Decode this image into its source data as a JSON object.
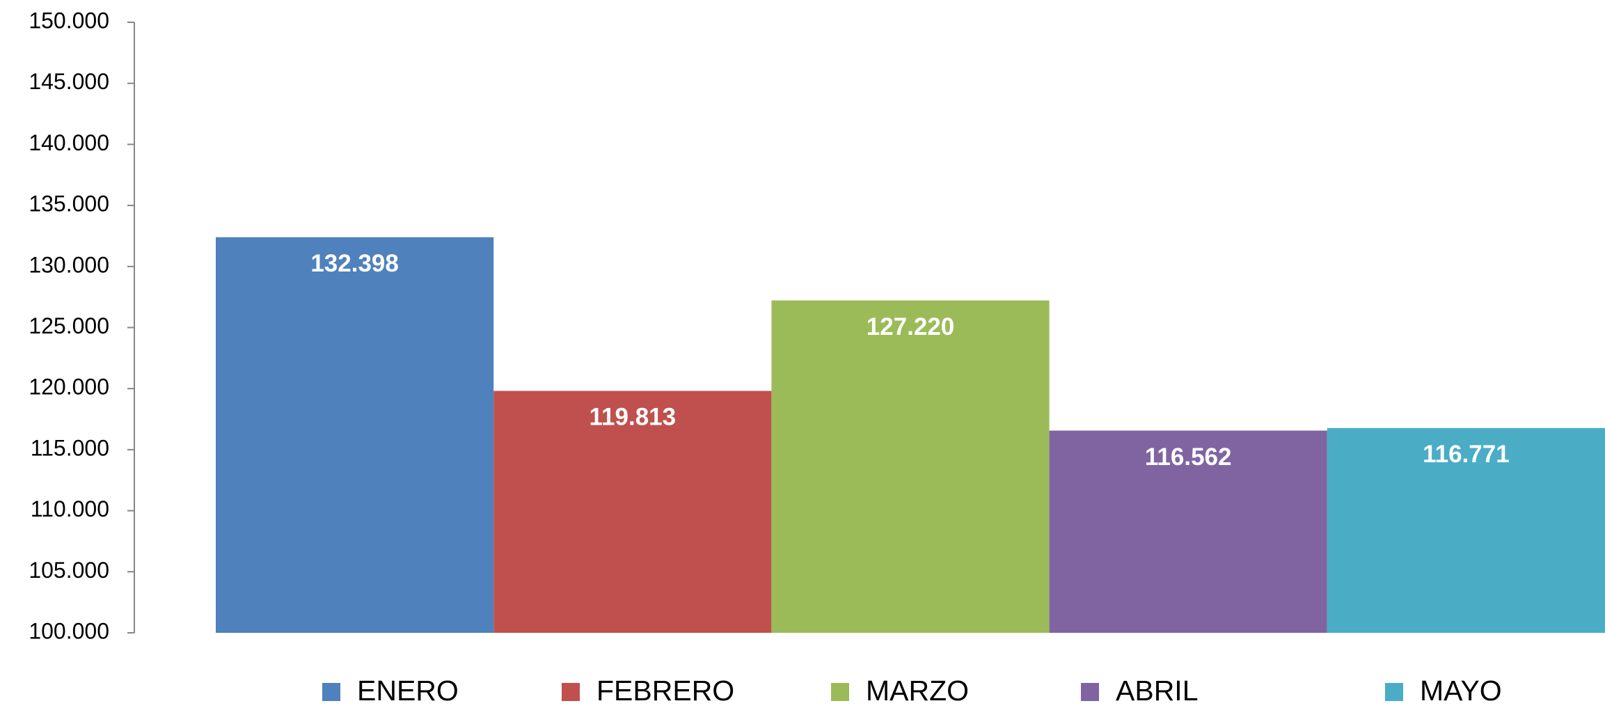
{
  "chart_data": {
    "type": "bar",
    "series": [
      {
        "name": "ENERO",
        "color": "#4f81bd",
        "values": [
          132398
        ],
        "value_labels": [
          "132.398"
        ]
      },
      {
        "name": "FEBRERO",
        "color": "#c0504d",
        "values": [
          119813
        ],
        "value_labels": [
          "119.813"
        ]
      },
      {
        "name": "MARZO",
        "color": "#9bbb59",
        "values": [
          127220
        ],
        "value_labels": [
          "127.220"
        ]
      },
      {
        "name": "ABRIL",
        "color": "#8064a2",
        "values": [
          116562
        ],
        "value_labels": [
          "116.562"
        ]
      },
      {
        "name": "MAYO",
        "color": "#4bacc6",
        "values": [
          116771
        ],
        "value_labels": [
          "116.771"
        ]
      }
    ],
    "ylim": [
      100000,
      150000
    ],
    "yticks": [
      {
        "value": 100000,
        "label": "100.000"
      },
      {
        "value": 105000,
        "label": "105.000"
      },
      {
        "value": 110000,
        "label": "110.000"
      },
      {
        "value": 115000,
        "label": "115.000"
      },
      {
        "value": 120000,
        "label": "120.000"
      },
      {
        "value": 125000,
        "label": "125.000"
      },
      {
        "value": 130000,
        "label": "130.000"
      },
      {
        "value": 135000,
        "label": "135.000"
      },
      {
        "value": 140000,
        "label": "140.000"
      },
      {
        "value": 145000,
        "label": "145.000"
      },
      {
        "value": 150000,
        "label": "150.000"
      }
    ],
    "legend": "bottom"
  }
}
